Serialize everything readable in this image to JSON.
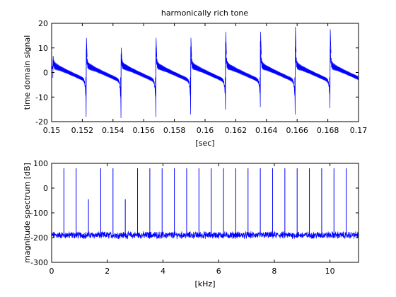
{
  "chart_data": [
    {
      "type": "line",
      "title": "harmonically rich tone",
      "xlabel": "[sec]",
      "ylabel": "time domain signal",
      "xlim": [
        0.15,
        0.17
      ],
      "ylim": [
        -20,
        20
      ],
      "xticks": [
        0.15,
        0.152,
        0.154,
        0.156,
        0.158,
        0.16,
        0.162,
        0.164,
        0.166,
        0.168,
        0.17
      ],
      "yticks": [
        -20,
        -10,
        0,
        10,
        20
      ],
      "xtick_labels": [
        "0.15",
        "0.152",
        "0.154",
        "0.156",
        "0.158",
        "0.16",
        "0.162",
        "0.164",
        "0.166",
        "0.168",
        "0.17"
      ],
      "ytick_labels": [
        "-20",
        "-10",
        "0",
        "10",
        "20"
      ],
      "grid": false,
      "series_color": "#0000ff",
      "period_sec": 0.002268,
      "pulses": [
        {
          "t": 0.15008,
          "peak": 6,
          "trough": -2
        },
        {
          "t": 0.15225,
          "peak": 14,
          "trough": -18
        },
        {
          "t": 0.15452,
          "peak": 10,
          "trough": -18.5
        },
        {
          "t": 0.15679,
          "peak": 14,
          "trough": -18
        },
        {
          "t": 0.15906,
          "peak": 14,
          "trough": -17
        },
        {
          "t": 0.16133,
          "peak": 16.5,
          "trough": -15
        },
        {
          "t": 0.1636,
          "peak": 16.5,
          "trough": -14
        },
        {
          "t": 0.16587,
          "peak": 18.5,
          "trough": -17
        },
        {
          "t": 0.16814,
          "peak": 17.5,
          "trough": -14.5
        }
      ]
    },
    {
      "type": "line",
      "title": "",
      "xlabel": "[kHz]",
      "ylabel": "magnitude spectrum [dB]",
      "xlim": [
        0,
        11.025
      ],
      "ylim": [
        -300,
        100
      ],
      "xticks": [
        0,
        2,
        4,
        6,
        8,
        10
      ],
      "yticks": [
        -300,
        -200,
        -100,
        0,
        100
      ],
      "xtick_labels": [
        "0",
        "2",
        "4",
        "6",
        "8",
        "10"
      ],
      "ytick_labels": [
        "-300",
        "-200",
        "-100",
        "0",
        "100"
      ],
      "grid": false,
      "series_color": "#0000ff",
      "noise_floor_db": -190,
      "harmonic_spacing_khz": 0.441,
      "harmonics": [
        {
          "f": 0.441,
          "db": 80
        },
        {
          "f": 0.882,
          "db": 80
        },
        {
          "f": 1.323,
          "db": -45
        },
        {
          "f": 1.764,
          "db": 80
        },
        {
          "f": 2.205,
          "db": 80
        },
        {
          "f": 2.646,
          "db": -45
        },
        {
          "f": 3.087,
          "db": 80
        },
        {
          "f": 3.528,
          "db": 80
        },
        {
          "f": 3.969,
          "db": 80
        },
        {
          "f": 4.41,
          "db": 80
        },
        {
          "f": 4.851,
          "db": 80
        },
        {
          "f": 5.292,
          "db": 80
        },
        {
          "f": 5.733,
          "db": 80
        },
        {
          "f": 6.174,
          "db": 80
        },
        {
          "f": 6.615,
          "db": 80
        },
        {
          "f": 7.056,
          "db": 80
        },
        {
          "f": 7.497,
          "db": 80
        },
        {
          "f": 7.938,
          "db": 80
        },
        {
          "f": 8.379,
          "db": 80
        },
        {
          "f": 8.82,
          "db": 80
        },
        {
          "f": 9.261,
          "db": 80
        },
        {
          "f": 9.702,
          "db": 80
        },
        {
          "f": 10.143,
          "db": 80
        },
        {
          "f": 10.584,
          "db": 80
        },
        {
          "f": 11.025,
          "db": 80
        }
      ]
    }
  ]
}
